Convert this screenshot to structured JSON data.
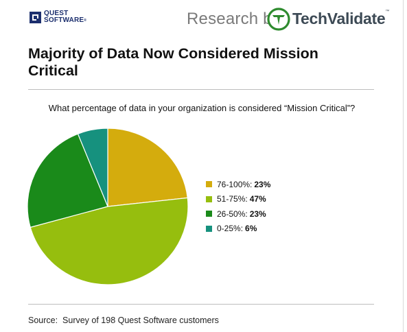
{
  "header": {
    "quest_logo": {
      "line1": "QUEST",
      "line2": "SOFTWARE",
      "tm": "®"
    },
    "research_by": "Research by",
    "techvalidate": {
      "tech": "Tech",
      "validate": "Validate",
      "tm": "™"
    }
  },
  "title": "Majority of Data Now Considered Mission Critical",
  "question": "What percentage of data in your organization is considered “Mission Critical”?",
  "chart_data": {
    "type": "pie",
    "title": "Majority of Data Now Considered Mission Critical",
    "slices": [
      {
        "label": "76-100%",
        "value": 23,
        "color": "#d4ac0d"
      },
      {
        "label": "51-75%",
        "value": 47,
        "color": "#96be0e"
      },
      {
        "label": "26-50%",
        "value": 23,
        "color": "#1a8a1a"
      },
      {
        "label": "0-25%",
        "value": 6,
        "color": "#16917e"
      }
    ],
    "legend_position": "right"
  },
  "legend": [
    {
      "label": "76-100%:",
      "value": "23%"
    },
    {
      "label": "51-75%:",
      "value": "47%"
    },
    {
      "label": "26-50%:",
      "value": "23%"
    },
    {
      "label": "0-25%:",
      "value": "6%"
    }
  ],
  "source": "Source:  Survey of 198 Quest Software customers"
}
